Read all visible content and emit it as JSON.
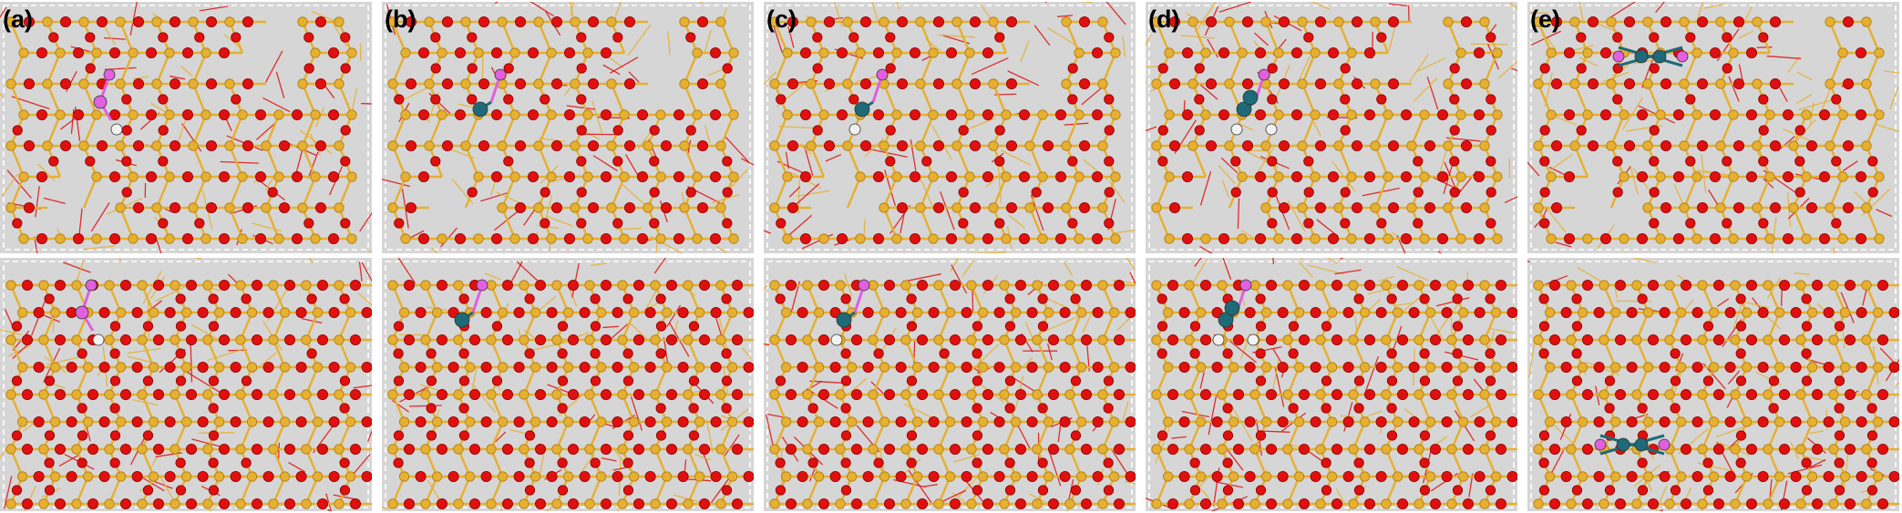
{
  "figure": {
    "panels": [
      {
        "label": "(a)"
      },
      {
        "label": "(b)"
      },
      {
        "label": "(c)"
      },
      {
        "label": "(d)"
      },
      {
        "label": "(e)"
      }
    ],
    "colors": {
      "background": "#d6d6d6",
      "oxygen": "#e01010",
      "silicon": "#e6b030",
      "boron": "#e060e0",
      "metal": "#1e6a78",
      "hydrogen": "#f2f2f2",
      "frame": "#ffffff"
    }
  }
}
